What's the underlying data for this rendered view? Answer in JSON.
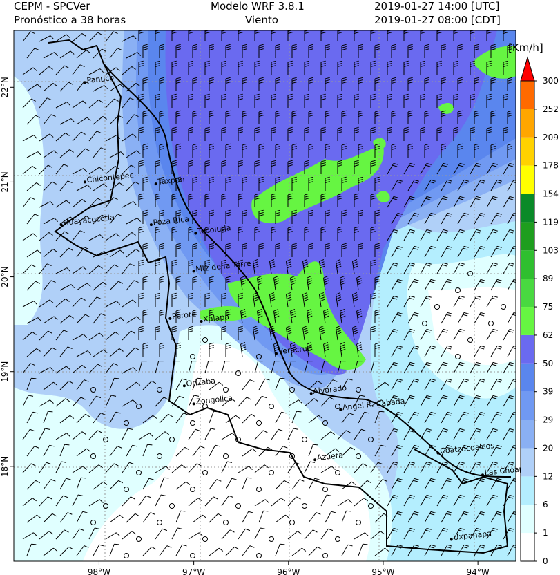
{
  "header": {
    "left_line1": "CEPM - SPCVer",
    "left_line2": "Pronóstico a 38 horas",
    "center_line1": "Modelo WRF 3.8.1",
    "center_line2": "Viento",
    "right_line1": "2019-01-27 14:00 [UTC]",
    "right_line2": "2019-01-27 08:00 [CDT]"
  },
  "map": {
    "extent": {
      "lon": [
        -98.9,
        -93.6
      ],
      "lat": [
        17.0,
        22.6
      ]
    },
    "lon_ticks": [
      {
        "v": -98,
        "label": "98°W"
      },
      {
        "v": -97,
        "label": "97°W"
      },
      {
        "v": -96,
        "label": "96°W"
      },
      {
        "v": -95,
        "label": "95°W"
      },
      {
        "v": -94,
        "label": "94°W"
      }
    ],
    "lat_ticks": [
      {
        "v": 18,
        "label": "18°N"
      },
      {
        "v": 19,
        "label": "19°N"
      },
      {
        "v": 20,
        "label": "20°N"
      },
      {
        "v": 21,
        "label": "21°N"
      },
      {
        "v": 22,
        "label": "22°N"
      }
    ],
    "cities": [
      {
        "name": "Panuco",
        "lon": -98.15,
        "lat": 22.05
      },
      {
        "name": "Chicontepec",
        "lon": -98.15,
        "lat": 21.0
      },
      {
        "name": "Tuxpan",
        "lon": -97.4,
        "lat": 20.98
      },
      {
        "name": "Huayacocotla",
        "lon": -98.4,
        "lat": 20.55
      },
      {
        "name": "Poza Rica",
        "lon": -97.45,
        "lat": 20.55
      },
      {
        "name": "Tecolutla",
        "lon": -96.98,
        "lat": 20.46
      },
      {
        "name": "Mtz de la Torre",
        "lon": -97.0,
        "lat": 20.06
      },
      {
        "name": "Perote",
        "lon": -97.25,
        "lat": 19.56
      },
      {
        "name": "Xalapa",
        "lon": -96.92,
        "lat": 19.53
      },
      {
        "name": "Veracruz",
        "lon": -96.13,
        "lat": 19.19
      },
      {
        "name": "Orizaba",
        "lon": -97.1,
        "lat": 18.85
      },
      {
        "name": "Alvarado",
        "lon": -95.76,
        "lat": 18.77
      },
      {
        "name": "Zongolica",
        "lon": -97.0,
        "lat": 18.66
      },
      {
        "name": "Angel R. Cabada",
        "lon": -95.45,
        "lat": 18.6
      },
      {
        "name": "Azueta",
        "lon": -95.72,
        "lat": 18.07
      },
      {
        "name": "Coatzacoalcos",
        "lon": -94.42,
        "lat": 18.14
      },
      {
        "name": "Las Choapas",
        "lon": -93.95,
        "lat": 17.91
      },
      {
        "name": "Uxpanapa",
        "lon": -94.28,
        "lat": 17.23
      }
    ]
  },
  "colorbar": {
    "unit": "[Km/h]",
    "levels": [
      "0",
      "1",
      "6",
      "12",
      "20",
      "29",
      "39",
      "50",
      "62",
      "75",
      "89",
      "103",
      "119",
      "154",
      "178",
      "209",
      "252",
      "300"
    ],
    "colors": [
      "#ffffff",
      "#e0ffff",
      "#b4eefe",
      "#b0d0f8",
      "#8ab0f4",
      "#7099f2",
      "#5a86ee",
      "#6a6af0",
      "#66f542",
      "#49d940",
      "#2fbf2f",
      "#1e9e1e",
      "#0a8a28",
      "#ffff00",
      "#ffd200",
      "#ffa600",
      "#ff6a00",
      "#ff0000"
    ]
  }
}
